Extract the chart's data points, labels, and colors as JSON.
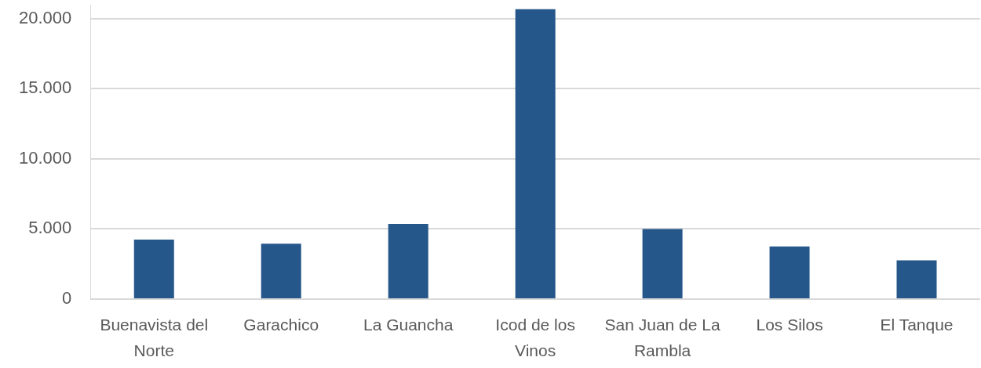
{
  "chart_data": {
    "type": "bar",
    "categories": [
      "Buenavista del Norte",
      "Garachico",
      "La Guancha",
      "Icod de los Vinos",
      "San Juan de La Rambla",
      "Los Silos",
      "El Tanque"
    ],
    "values": [
      4240,
      3950,
      5360,
      20680,
      4990,
      3750,
      2760
    ],
    "color": "#26578a",
    "ylim": [
      0,
      21000
    ],
    "yticks": [
      0,
      {
        "value": 5000,
        "label": "5.000"
      },
      {
        "value": 10000,
        "label": "10.000"
      },
      {
        "value": 15000,
        "label": "15.000"
      },
      {
        "value": 20000,
        "label": "20.000"
      }
    ],
    "grid": "y"
  }
}
